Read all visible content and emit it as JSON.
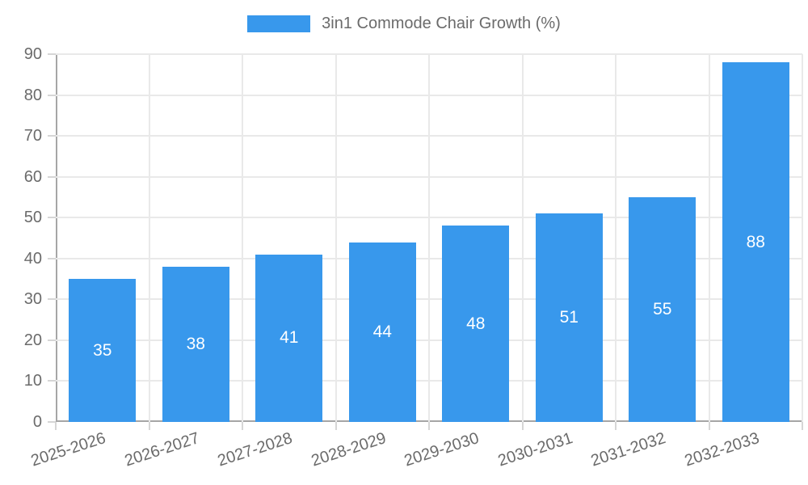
{
  "chart_data": {
    "type": "bar",
    "title": "3in1 Commode Chair Growth (%)",
    "legend": {
      "label": "3in1 Commode Chair Growth (%)",
      "position": "top"
    },
    "categories": [
      "2025-2026",
      "2026-2027",
      "2027-2028",
      "2028-2029",
      "2029-2030",
      "2030-2031",
      "2031-2032",
      "2032-2033"
    ],
    "values": [
      35,
      38,
      41,
      44,
      48,
      51,
      55,
      88
    ],
    "xlabel": "",
    "ylabel": "",
    "ylim": [
      0,
      90
    ],
    "ytick_step": 10,
    "ytick_labels": [
      "0",
      "10",
      "20",
      "30",
      "40",
      "50",
      "60",
      "70",
      "80",
      "90"
    ],
    "grid": true,
    "legend_position": "top",
    "x_label_rotation_deg": -18,
    "colors": {
      "bar": "#3898ec",
      "value_label": "#ffffff",
      "axis": "#a6a6a6",
      "grid": "#e9e9e9",
      "tick": "#d6d6d6",
      "text": "#6b6b6b"
    }
  }
}
